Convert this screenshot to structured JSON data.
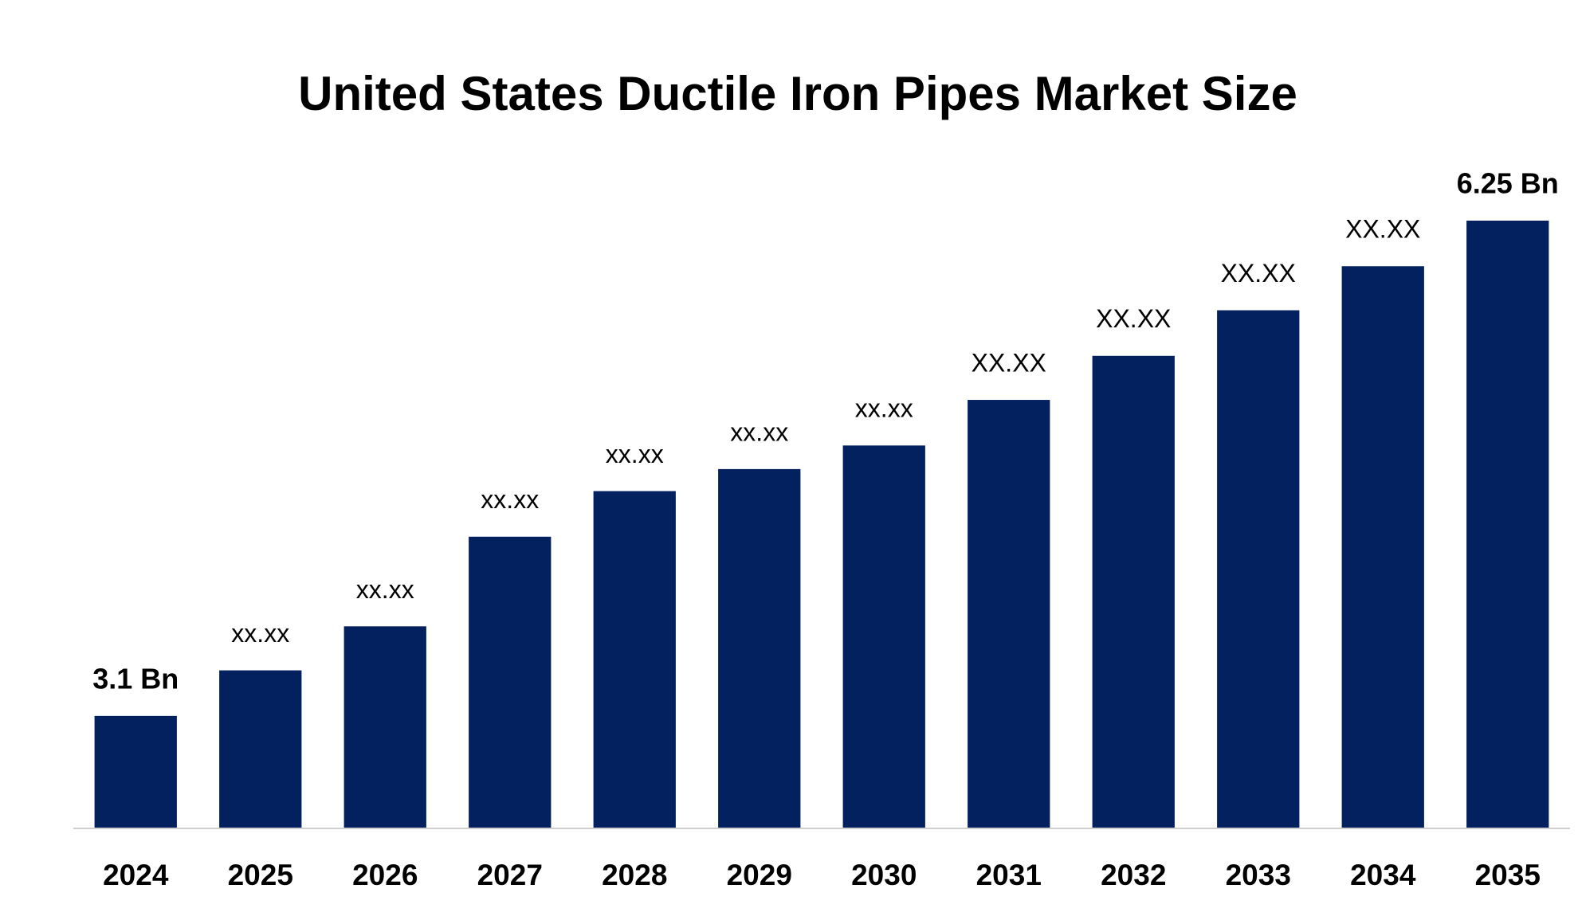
{
  "chart_data": {
    "type": "bar",
    "title": "United States Ductile Iron Pipes Market Size",
    "categories": [
      "2024",
      "2025",
      "2026",
      "2027",
      "2028",
      "2029",
      "2030",
      "2031",
      "2032",
      "2033",
      "2034",
      "2035"
    ],
    "values": [
      3.1,
      3.39,
      3.67,
      4.24,
      4.53,
      4.67,
      4.82,
      5.11,
      5.39,
      5.68,
      5.96,
      6.25
    ],
    "value_labels": [
      "3.1 Bn",
      "xx.xx",
      "xx.xx",
      "xx.xx",
      "xx.xx",
      "xx.xx",
      "xx.xx",
      "XX.XX",
      "XX.XX",
      "XX.XX",
      "XX.XX",
      "6.25 Bn"
    ],
    "color": "#03215f",
    "ylim": [
      2.39,
      6.25
    ]
  }
}
